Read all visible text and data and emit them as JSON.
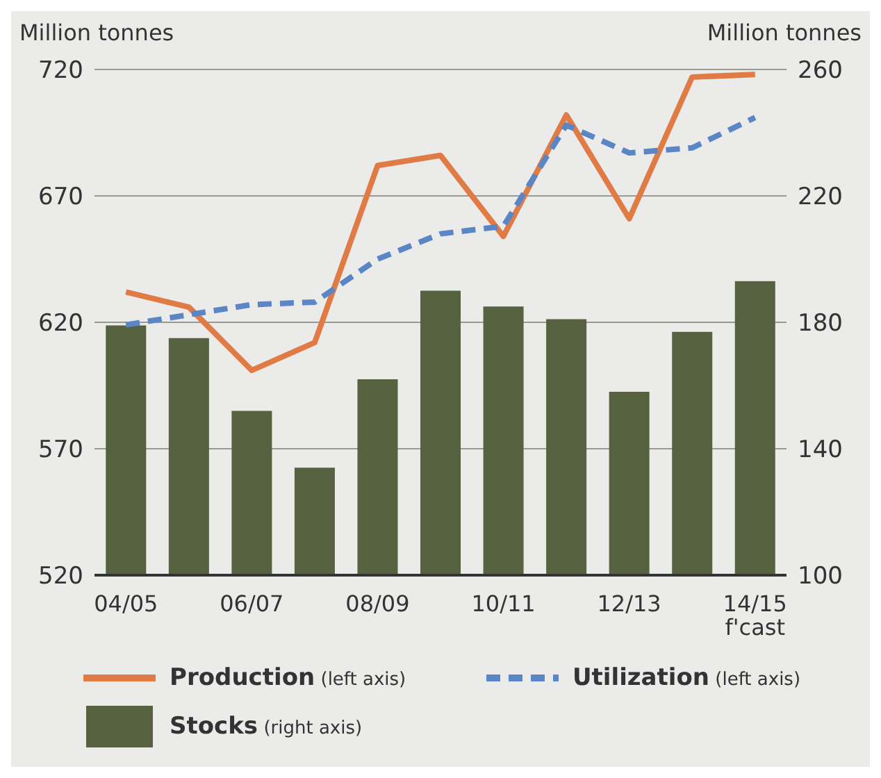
{
  "chart_data": {
    "type": "bar",
    "ylabel": "Million tonnes",
    "y2label": "Million tonnes",
    "categories": [
      "04/05",
      null,
      "06/07",
      null,
      "08/09",
      null,
      "10/11",
      null,
      "12/13",
      null,
      "14/15\nf'cast"
    ],
    "series": [
      {
        "name": "Stocks (right axis)",
        "axis": "y2",
        "color": "#55613f",
        "values": [
          179,
          175,
          152,
          134,
          162,
          190,
          185,
          181,
          158,
          177,
          193
        ]
      },
      {
        "name": "Production (left axis)",
        "type": "line",
        "color": "#e07b45",
        "line_style": "solid",
        "values": [
          632,
          626,
          601,
          612,
          682,
          686,
          654,
          702,
          661,
          717,
          718
        ]
      },
      {
        "name": "Utilization (left axis)",
        "type": "line",
        "color": "#5b86c5",
        "line_style": "dashed",
        "values": [
          619,
          623,
          627,
          628,
          645,
          655,
          658,
          698,
          687,
          689,
          701
        ]
      }
    ],
    "ylim": [
      520,
      720
    ],
    "yticks": [
      520,
      570,
      620,
      670,
      720
    ],
    "y2lim": [
      100,
      260
    ],
    "y2ticks": [
      100,
      140,
      180,
      220,
      260
    ],
    "grid": "y",
    "legend": "bottom",
    "marker": "none"
  }
}
